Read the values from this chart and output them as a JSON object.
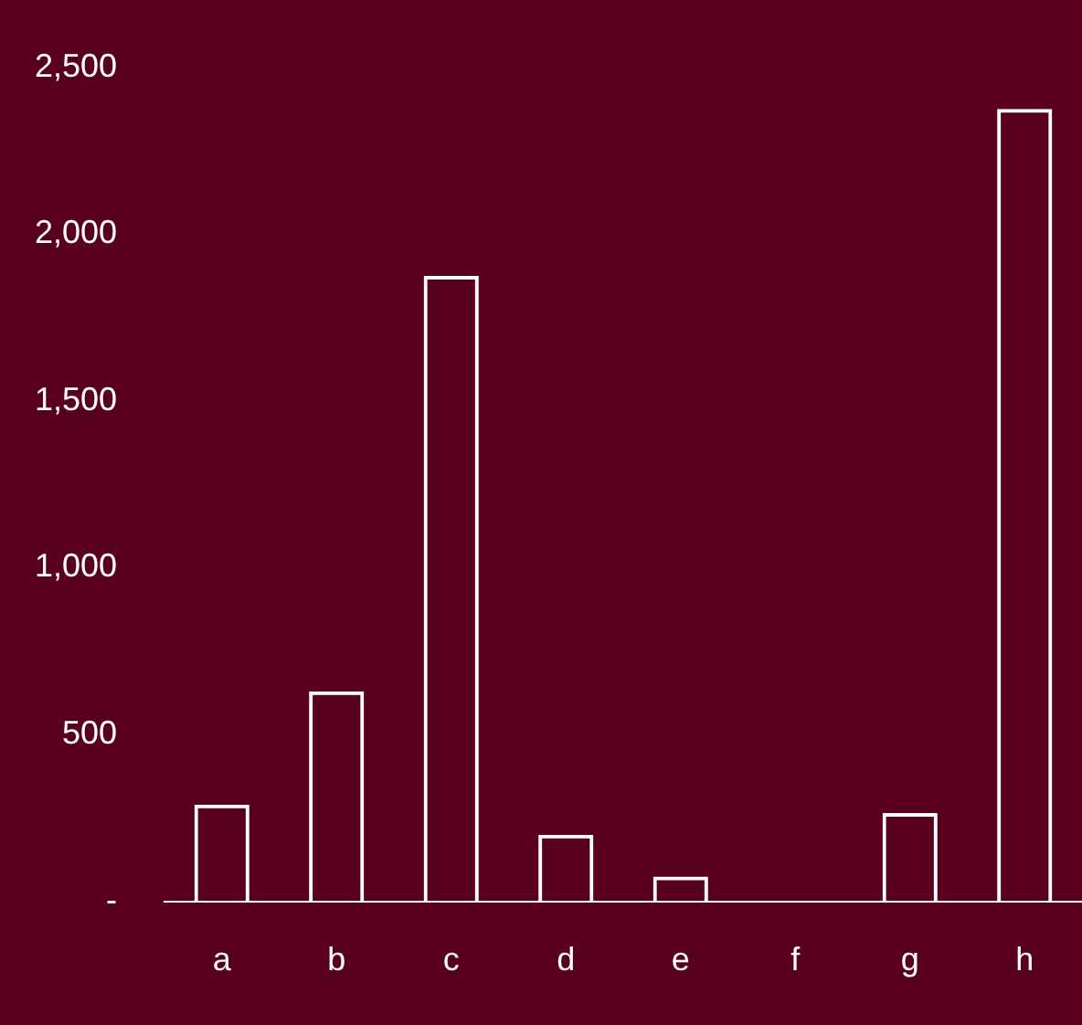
{
  "chart_data": {
    "type": "bar",
    "categories": [
      "a",
      "b",
      "c",
      "d",
      "e",
      "f",
      "g",
      "h"
    ],
    "values": [
      290,
      630,
      1875,
      200,
      75,
      0,
      265,
      2375
    ],
    "color": "#ffffff",
    "ylim": [
      0,
      2500
    ],
    "yticks": [
      {
        "value": 0,
        "label": "-"
      },
      500,
      {
        "value": 1000,
        "label": "1,000"
      },
      {
        "value": 1500,
        "label": "1,500"
      },
      {
        "value": 2000,
        "label": "2,000"
      },
      {
        "value": 2500,
        "label": "2,500"
      }
    ],
    "grid": false,
    "legend": false
  }
}
